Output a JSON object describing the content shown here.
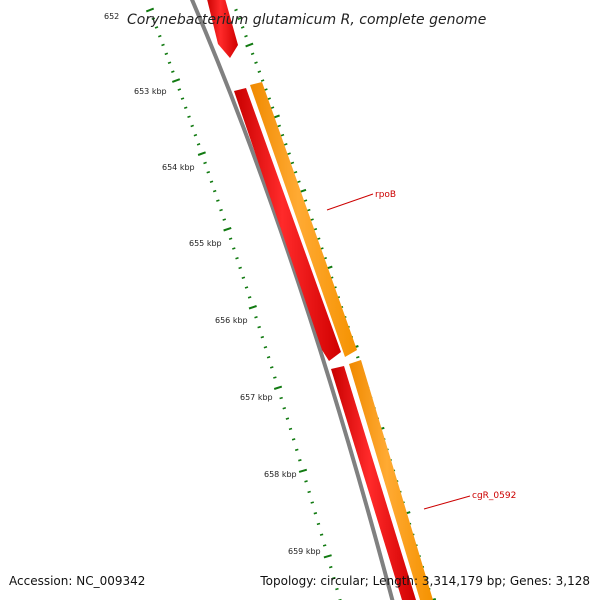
{
  "title": "Corynebacterium glutamicum R, complete genome",
  "ticks": [
    "652",
    "653 kbp",
    "654 kbp",
    "655 kbp",
    "656 kbp",
    "657 kbp",
    "658 kbp",
    "659 kbp"
  ],
  "genes": [
    {
      "name": "rpoB",
      "strand": "reverse-and-forward",
      "color": "#ff0000"
    },
    {
      "name": "cgR_0592",
      "strand": "reverse-and-forward",
      "color": "#ff0000"
    }
  ],
  "colors": {
    "backbone": "#808080",
    "cds_reverse": "#ff0000",
    "cds_forward": "#ff9900",
    "tick_marks": "#117a11",
    "gene_label": "#cc0000"
  },
  "footer": {
    "accession": "Accession: NC_009342",
    "summary": "Topology: circular; Length: 3,314,179 bp; Genes: 3,128"
  }
}
